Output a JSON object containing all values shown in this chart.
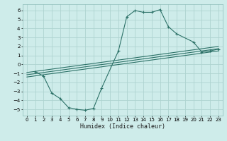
{
  "xlabel": "Humidex (Indice chaleur)",
  "bg_color": "#ceecea",
  "grid_color": "#aed4d0",
  "line_color": "#2d7268",
  "xlim": [
    -0.5,
    23.5
  ],
  "ylim": [
    -5.7,
    6.7
  ],
  "xticks": [
    0,
    1,
    2,
    3,
    4,
    5,
    6,
    7,
    8,
    9,
    10,
    11,
    12,
    13,
    14,
    15,
    16,
    17,
    18,
    19,
    20,
    21,
    22,
    23
  ],
  "yticks": [
    -5,
    -4,
    -3,
    -2,
    -1,
    0,
    1,
    2,
    3,
    4,
    5,
    6
  ],
  "main_x": [
    1,
    2,
    3,
    4,
    5,
    6,
    7,
    8,
    9,
    11,
    12,
    13,
    14,
    15,
    16,
    17,
    18,
    20,
    21,
    22,
    23
  ],
  "main_y": [
    -0.8,
    -1.3,
    -3.2,
    -3.8,
    -4.8,
    -5.0,
    -5.1,
    -4.9,
    -2.6,
    1.5,
    5.3,
    6.0,
    5.8,
    5.8,
    6.1,
    4.2,
    3.4,
    2.5,
    1.4,
    1.5,
    1.7
  ],
  "line1_x": [
    0,
    23
  ],
  "line1_y": [
    -0.9,
    2.0
  ],
  "line2_x": [
    0,
    23
  ],
  "line2_y": [
    -1.15,
    1.75
  ],
  "line3_x": [
    0,
    23
  ],
  "line3_y": [
    -1.4,
    1.5
  ]
}
